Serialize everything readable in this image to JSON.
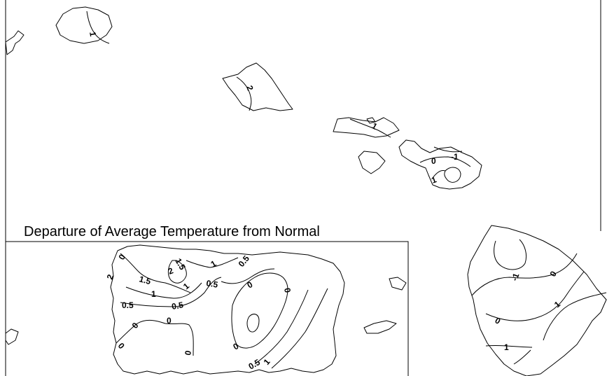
{
  "map": {
    "title": "Departure of Average Temperature from Normal",
    "contour_labels": {
      "kauai": "1",
      "oahu": "2",
      "molokai": "1",
      "maui_0": "0",
      "maui_neg1": "-1",
      "maui_1": "1",
      "pr_0a": "0",
      "pr_2a": "2",
      "pr_15a": "1.5",
      "pr_15b": "1.5",
      "pr_2b": "2",
      "pr_1a": "1",
      "pr_1b": "1",
      "pr_05a": "0.5",
      "pr_05b": "0.5",
      "pr_05c": "0.5",
      "pr_05d": "0.5",
      "pr_0b": "0",
      "pr_0c": "0",
      "pr_0d": "0",
      "pr_0e": "0",
      "pr_0f": "0",
      "pr_0g": "0",
      "pr_0h": "0",
      "pr_1c": "1",
      "pr_05e": "0.5",
      "pr_1d": "1",
      "bi_neg1": "-1",
      "bi_0a": "0",
      "bi_1a": "1",
      "bi_0b": "0",
      "bi_1b": "1"
    }
  }
}
